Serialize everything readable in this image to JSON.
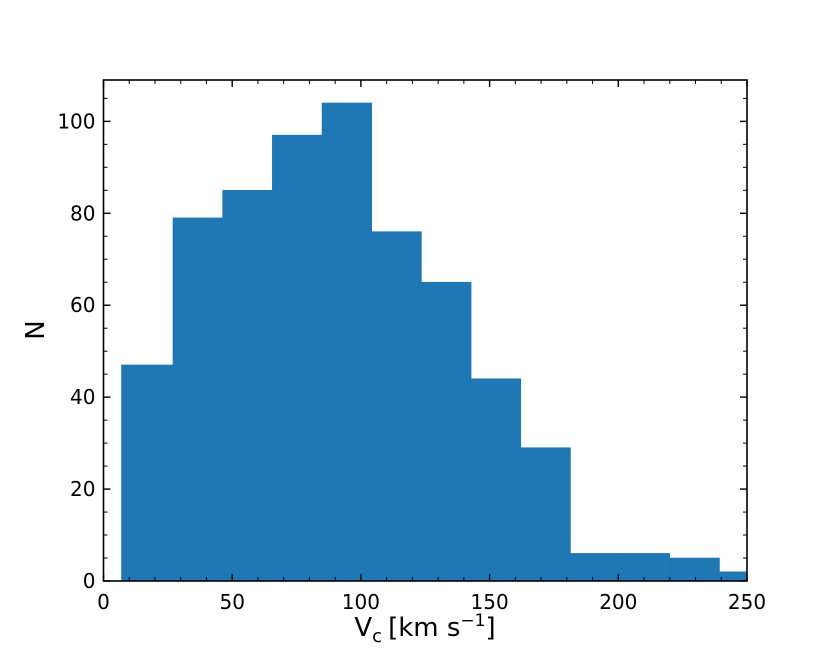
{
  "chart_data": {
    "type": "bar",
    "subtype": "histogram",
    "bin_edges": [
      7.0,
      27.0,
      46.3,
      65.6,
      84.9,
      104.2,
      123.5,
      142.8,
      162.1,
      181.4,
      200.7,
      220.0,
      239.3,
      250.0
    ],
    "values": [
      47,
      79,
      85,
      97,
      104,
      76,
      65,
      44,
      29,
      6,
      6,
      5,
      2
    ],
    "xlabel_main": "V",
    "xlabel_sub": "c",
    "xlabel_unit": "[km s",
    "xlabel_sup": "−1",
    "xlabel_close": "]",
    "ylabel": "N",
    "xlim": [
      0,
      250
    ],
    "ylim": [
      0,
      109
    ],
    "xticks": [
      0,
      50,
      100,
      150,
      200,
      250
    ],
    "yticks": [
      0,
      20,
      40,
      60,
      80,
      100
    ],
    "grid": false,
    "bar_color": "#1f77b4"
  }
}
